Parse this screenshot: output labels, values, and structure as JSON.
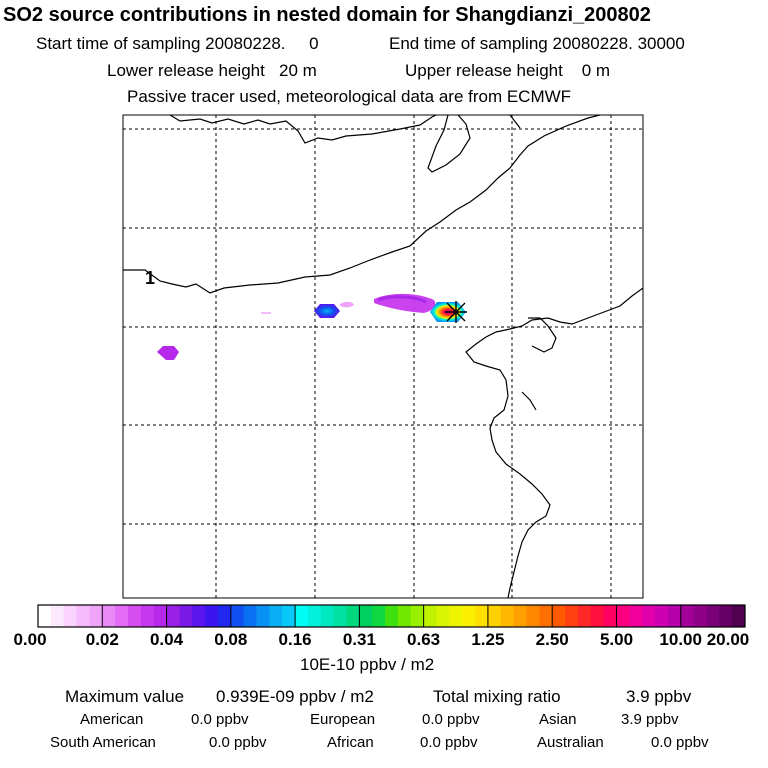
{
  "header": {
    "title": "SO2 source contributions in nested domain for Shangdianzi_200802",
    "start_label": "Start time of sampling",
    "start_value": "20080228.     0",
    "end_label": "End time of sampling",
    "end_value": "20080228. 30000",
    "lower_label": "Lower release height",
    "lower_value": "20 m",
    "upper_label": "Upper release height",
    "upper_value": "0 m",
    "tracer_note": "Passive tracer used, meteorological data are from ECMWF"
  },
  "chart_data": {
    "type": "heatmap",
    "title": "SO2 source contributions in nested domain for Shangdianzi_200802",
    "map": {
      "grid": "dashed lat/lon lines",
      "region_label": "1",
      "receptor_marker": "cross (Shangdianzi site)",
      "plumes": [
        {
          "name": "near-receptor plume",
          "level": "5.00-10.00 core, 1.25-2.50 ring, 0.31-0.63 edge"
        },
        {
          "name": "elongated western tail",
          "level": "0.02-0.04"
        },
        {
          "name": "isolated patch",
          "level": "0.08-0.16 core, 0.04-0.08 ring"
        },
        {
          "name": "far-west patch",
          "level": "0.04"
        }
      ]
    },
    "colorbar": {
      "tick_labels": [
        "0.00",
        "0.02",
        "0.04",
        "0.08",
        "0.16",
        "0.31",
        "0.63",
        "1.25",
        "2.50",
        "5.00",
        "10.00",
        "20.00"
      ],
      "units": "10E-10 ppbv / m2",
      "colors": [
        [
          "#ffffff",
          "#fde9fe",
          "#f9d3fd",
          "#f5bbfb",
          "#f0a4f9"
        ],
        [
          "#ea88f6",
          "#e26cf4",
          "#d64ef2",
          "#c838ee",
          "#b628ea"
        ],
        [
          "#9a20e6",
          "#7b1ae8",
          "#5a14ec",
          "#3c14f0",
          "#2028f0"
        ],
        [
          "#1050f0",
          "#0a70f2",
          "#0890f4",
          "#08aef6",
          "#08c8f8"
        ],
        [
          "#00fcf6",
          "#00f2dc",
          "#00e8c0",
          "#00e0a0",
          "#00d880"
        ],
        [
          "#00d060",
          "#10d840",
          "#40e010",
          "#70e800",
          "#98f000"
        ],
        [
          "#c0f200",
          "#d8f400",
          "#ecf400",
          "#fcf000",
          "#ffe000"
        ],
        [
          "#ffd000",
          "#ffb800",
          "#ffa000",
          "#ff8800",
          "#ff7000"
        ],
        [
          "#ff5a00",
          "#ff4010",
          "#ff2828",
          "#ff1040",
          "#ff0060"
        ],
        [
          "#fc0080",
          "#f2009c",
          "#e000aa",
          "#cc00b0",
          "#b400a8"
        ],
        [
          "#a20098",
          "#8e0088",
          "#7a0078",
          "#660066",
          "#500050"
        ]
      ]
    }
  },
  "summary": {
    "max_label": "Maximum value",
    "max_value": "0.939E-09 ppbv / m2",
    "total_label": "Total mixing ratio",
    "total_value": "3.9 ppbv",
    "regions": [
      {
        "name": "American",
        "value": "0.0 ppbv"
      },
      {
        "name": "European",
        "value": "0.0 ppbv"
      },
      {
        "name": "Asian",
        "value": "3.9 ppbv"
      },
      {
        "name": "South American",
        "value": "0.0 ppbv"
      },
      {
        "name": "African",
        "value": "0.0 ppbv"
      },
      {
        "name": "Australian",
        "value": "0.0 ppbv"
      }
    ]
  }
}
